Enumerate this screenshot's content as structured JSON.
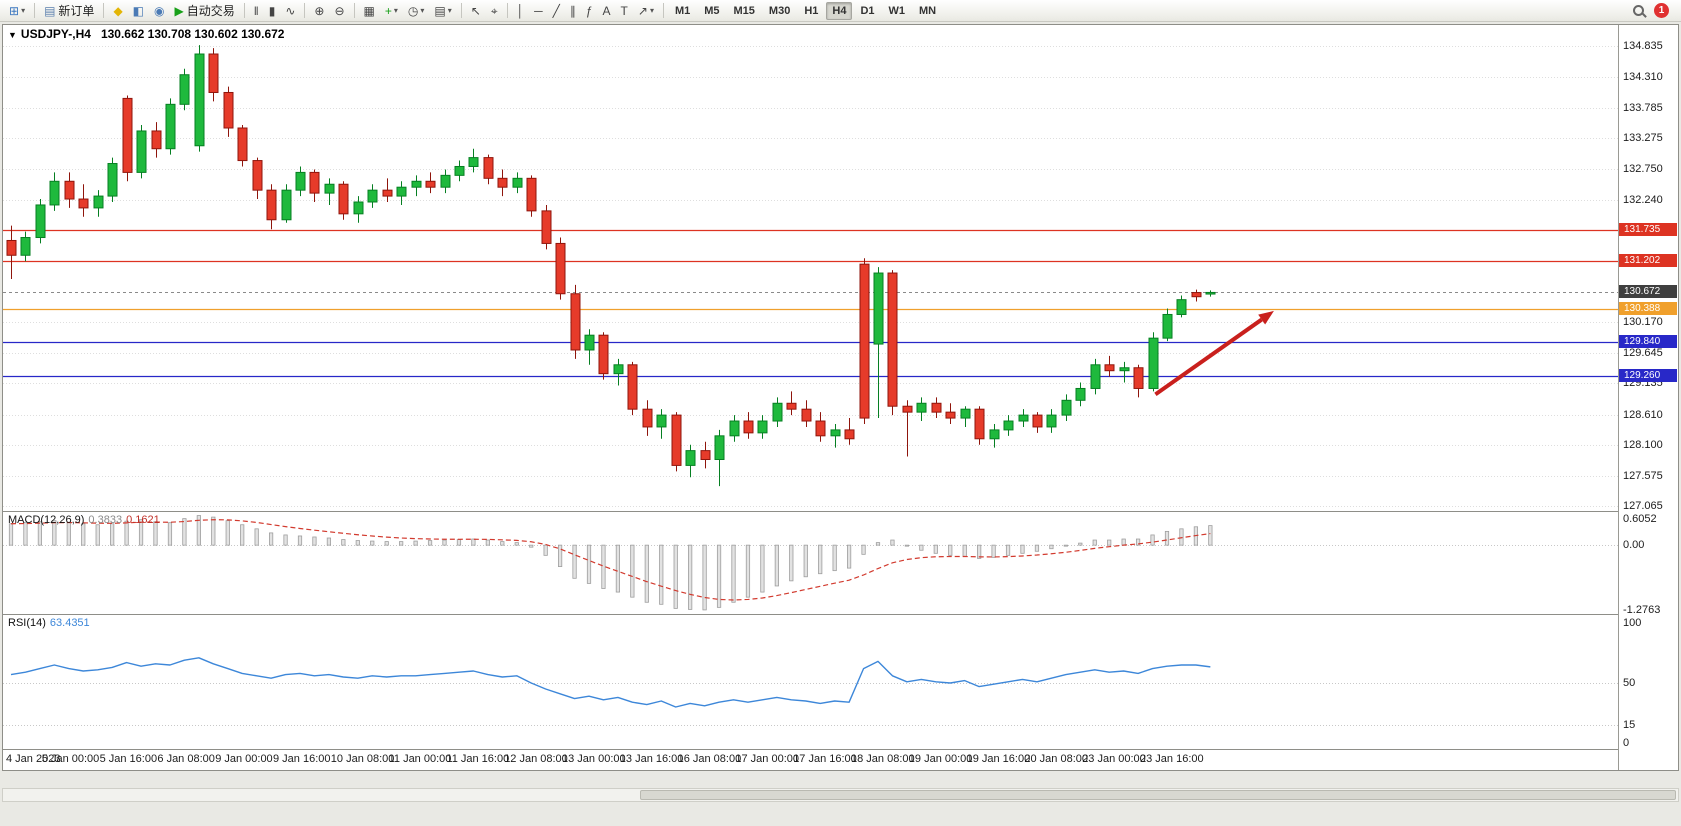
{
  "toolbar": {
    "caret_glyph": "▾",
    "left_items": [
      {
        "name": "new-chart-button",
        "glyph": "⊞",
        "color": "#3c78c0",
        "dropdown": true
      },
      {
        "sep": true
      },
      {
        "name": "new-order-button",
        "glyph": "▤",
        "color": "#5a7fae",
        "label": "新订单"
      },
      {
        "sep": true
      },
      {
        "name": "metaeditor-button",
        "glyph": "◆",
        "color": "#e3b505"
      },
      {
        "name": "market-watch-button",
        "glyph": "◧",
        "color": "#4a7ab5"
      },
      {
        "name": "navigator-button",
        "glyph": "◉",
        "color": "#4a7ab5"
      },
      {
        "name": "autotrading-button",
        "glyph": "▶",
        "color": "#18a018",
        "label": "自动交易"
      },
      {
        "sep": true
      },
      {
        "name": "chart-bars-button",
        "glyph": "‖",
        "color": "#444"
      },
      {
        "name": "chart-candles-button",
        "glyph": "▮",
        "color": "#444"
      },
      {
        "name": "chart-line-button",
        "glyph": "∿",
        "color": "#444"
      },
      {
        "sep": true
      },
      {
        "name": "zoom-in-button",
        "glyph": "⊕",
        "color": "#444"
      },
      {
        "name": "zoom-out-button",
        "glyph": "⊖",
        "color": "#444"
      },
      {
        "sep": true
      },
      {
        "name": "tile-windows-button",
        "glyph": "▦",
        "color": "#444"
      },
      {
        "name": "indicators-button",
        "glyph": "+",
        "color": "#18a018",
        "dropdown": true
      },
      {
        "name": "periods-button",
        "glyph": "◷",
        "color": "#444",
        "dropdown": true
      },
      {
        "name": "templates-button",
        "glyph": "▤",
        "color": "#444",
        "dropdown": true
      },
      {
        "sep": true
      },
      {
        "name": "cursor-button",
        "glyph": "↖",
        "color": "#444"
      },
      {
        "name": "crosshair-button",
        "glyph": "⌖",
        "color": "#444"
      },
      {
        "sep": true
      },
      {
        "name": "vertical-line-button",
        "glyph": "│",
        "color": "#444"
      },
      {
        "name": "horizontal-line-button",
        "glyph": "─",
        "color": "#444"
      },
      {
        "name": "trendline-button",
        "glyph": "╱",
        "color": "#444"
      },
      {
        "name": "equidistant-channel-button",
        "glyph": "∥",
        "color": "#444"
      },
      {
        "name": "fibonacci-button",
        "glyph": "ƒ",
        "color": "#444"
      },
      {
        "name": "text-button",
        "glyph": "A",
        "color": "#444"
      },
      {
        "name": "text-label-button",
        "glyph": "T",
        "color": "#444"
      },
      {
        "name": "arrows-button",
        "glyph": "↗",
        "color": "#444",
        "dropdown": true
      },
      {
        "sep": true
      }
    ],
    "timeframes": {
      "options": [
        "M1",
        "M5",
        "M15",
        "M30",
        "H1",
        "H4",
        "D1",
        "W1",
        "MN"
      ],
      "active": "H4"
    },
    "right_items": [
      {
        "name": "symbol-search-button",
        "icon": "magnifier"
      },
      {
        "name": "notifications-badge",
        "label": "1",
        "bg": "#e03131"
      }
    ]
  },
  "chart": {
    "one_click_glyph": "▼",
    "title": {
      "symbol_period": "USDJPY-,H4",
      "ohlc": "130.662 130.708 130.602 130.672"
    },
    "indicators": {
      "macd_label": "MACD(12,26,9)",
      "macd_value": "0.3833",
      "macd_signal": "0.1621",
      "rsi_label": "RSI(14)",
      "rsi_value": "63.4351"
    }
  },
  "chart_data": {
    "type": "candlestick",
    "symbol": "USDJPY",
    "timeframe": "H4",
    "bars_per_label": 4,
    "price_axis": {
      "view_max": 135.19,
      "view_min": 126.98,
      "ticks": [
        "134.835",
        "134.310",
        "133.785",
        "133.275",
        "132.750",
        "132.240",
        "130.170",
        "129.645",
        "129.135",
        "128.610",
        "128.100",
        "127.575",
        "127.065"
      ]
    },
    "current": {
      "price": 130.672,
      "label": "130.672",
      "badge_color": "#3f3f3f"
    },
    "levels": [
      {
        "price": 131.735,
        "label": "131.735",
        "color": "#dd3322"
      },
      {
        "price": 131.202,
        "label": "131.202",
        "color": "#dd3322"
      },
      {
        "price": 130.388,
        "label": "130.388",
        "color": "#f0a02c"
      },
      {
        "price": 129.84,
        "label": "129.840",
        "color": "#2828c8"
      },
      {
        "price": 129.26,
        "label": "129.260",
        "color": "#2828c8"
      }
    ],
    "x_labels": [
      "4 Jan 2023",
      "5 Jan 00:00",
      "5 Jan 16:00",
      "6 Jan 08:00",
      "9 Jan 00:00",
      "9 Jan 16:00",
      "10 Jan 08:00",
      "11 Jan 00:00",
      "11 Jan 16:00",
      "12 Jan 08:00",
      "13 Jan 00:00",
      "13 Jan 16:00",
      "16 Jan 08:00",
      "17 Jan 00:00",
      "17 Jan 16:00",
      "18 Jan 08:00",
      "19 Jan 00:00",
      "19 Jan 16:00",
      "20 Jan 08:00",
      "23 Jan 00:00",
      "23 Jan 16:00"
    ],
    "candles": [
      [
        131.55,
        131.8,
        130.9,
        131.3
      ],
      [
        131.3,
        131.7,
        131.2,
        131.6
      ],
      [
        131.6,
        132.25,
        131.5,
        132.15
      ],
      [
        132.15,
        132.7,
        132.05,
        132.55
      ],
      [
        132.55,
        132.7,
        132.1,
        132.25
      ],
      [
        132.25,
        132.5,
        131.95,
        132.1
      ],
      [
        132.1,
        132.4,
        131.95,
        132.3
      ],
      [
        132.3,
        132.95,
        132.2,
        132.85
      ],
      [
        133.95,
        134.0,
        132.55,
        132.7
      ],
      [
        132.7,
        133.5,
        132.6,
        133.4
      ],
      [
        133.4,
        133.55,
        132.95,
        133.1
      ],
      [
        133.1,
        133.95,
        133.0,
        133.85
      ],
      [
        133.85,
        134.45,
        133.75,
        134.35
      ],
      [
        133.15,
        134.85,
        133.05,
        134.7
      ],
      [
        134.7,
        134.8,
        133.9,
        134.05
      ],
      [
        134.05,
        134.15,
        133.3,
        133.45
      ],
      [
        133.45,
        133.5,
        132.8,
        132.9
      ],
      [
        132.9,
        132.95,
        132.25,
        132.4
      ],
      [
        132.4,
        132.5,
        131.74,
        131.9
      ],
      [
        131.9,
        132.5,
        131.85,
        132.4
      ],
      [
        132.4,
        132.8,
        132.3,
        132.7
      ],
      [
        132.7,
        132.75,
        132.2,
        132.35
      ],
      [
        132.35,
        132.6,
        132.15,
        132.5
      ],
      [
        132.5,
        132.55,
        131.9,
        132.0
      ],
      [
        132.0,
        132.3,
        131.85,
        132.2
      ],
      [
        132.2,
        132.5,
        132.1,
        132.4
      ],
      [
        132.4,
        132.6,
        132.2,
        132.3
      ],
      [
        132.3,
        132.55,
        132.15,
        132.45
      ],
      [
        132.45,
        132.65,
        132.3,
        132.55
      ],
      [
        132.55,
        132.7,
        132.35,
        132.45
      ],
      [
        132.45,
        132.75,
        132.35,
        132.65
      ],
      [
        132.65,
        132.9,
        132.55,
        132.8
      ],
      [
        132.8,
        133.1,
        132.7,
        132.95
      ],
      [
        132.95,
        133.0,
        132.5,
        132.6
      ],
      [
        132.6,
        132.75,
        132.3,
        132.45
      ],
      [
        132.45,
        132.7,
        132.35,
        132.6
      ],
      [
        132.6,
        132.65,
        131.95,
        132.05
      ],
      [
        132.05,
        132.15,
        131.4,
        131.5
      ],
      [
        131.5,
        131.6,
        130.55,
        130.65
      ],
      [
        130.65,
        130.8,
        129.55,
        129.7
      ],
      [
        129.7,
        130.05,
        129.45,
        129.95
      ],
      [
        129.95,
        130.0,
        129.2,
        129.3
      ],
      [
        129.3,
        129.55,
        129.1,
        129.45
      ],
      [
        129.45,
        129.5,
        128.6,
        128.7
      ],
      [
        128.7,
        128.85,
        128.25,
        128.4
      ],
      [
        128.4,
        128.7,
        128.2,
        128.6
      ],
      [
        128.6,
        128.65,
        127.65,
        127.75
      ],
      [
        127.75,
        128.1,
        127.55,
        128.0
      ],
      [
        128.0,
        128.15,
        127.7,
        127.85
      ],
      [
        127.85,
        128.35,
        127.4,
        128.25
      ],
      [
        128.25,
        128.6,
        128.15,
        128.5
      ],
      [
        128.5,
        128.65,
        128.2,
        128.3
      ],
      [
        128.3,
        128.6,
        128.2,
        128.5
      ],
      [
        128.5,
        128.9,
        128.4,
        128.8
      ],
      [
        128.8,
        129.0,
        128.6,
        128.7
      ],
      [
        128.7,
        128.85,
        128.4,
        128.5
      ],
      [
        128.5,
        128.65,
        128.15,
        128.25
      ],
      [
        128.25,
        128.45,
        128.05,
        128.35
      ],
      [
        128.35,
        128.55,
        128.1,
        128.2
      ],
      [
        131.15,
        131.25,
        128.45,
        128.55
      ],
      [
        129.8,
        131.1,
        128.55,
        131.0
      ],
      [
        131.0,
        131.05,
        128.6,
        128.75
      ],
      [
        128.75,
        128.85,
        127.9,
        128.65
      ],
      [
        128.65,
        128.9,
        128.5,
        128.8
      ],
      [
        128.8,
        128.9,
        128.55,
        128.65
      ],
      [
        128.65,
        128.8,
        128.45,
        128.55
      ],
      [
        128.55,
        128.75,
        128.4,
        128.7
      ],
      [
        128.7,
        128.75,
        128.1,
        128.2
      ],
      [
        128.2,
        128.45,
        128.05,
        128.35
      ],
      [
        128.35,
        128.6,
        128.25,
        128.5
      ],
      [
        128.5,
        128.7,
        128.4,
        128.6
      ],
      [
        128.6,
        128.65,
        128.3,
        128.4
      ],
      [
        128.4,
        128.7,
        128.3,
        128.6
      ],
      [
        128.6,
        128.95,
        128.5,
        128.85
      ],
      [
        128.85,
        129.15,
        128.75,
        129.05
      ],
      [
        129.05,
        129.55,
        128.95,
        129.45
      ],
      [
        129.45,
        129.6,
        129.25,
        129.35
      ],
      [
        129.35,
        129.5,
        129.15,
        129.4
      ],
      [
        129.4,
        129.45,
        128.9,
        129.05
      ],
      [
        129.05,
        130.0,
        129.0,
        129.9
      ],
      [
        129.9,
        130.4,
        129.85,
        130.3
      ],
      [
        130.3,
        130.62,
        130.25,
        130.55
      ],
      [
        130.67,
        130.72,
        130.52,
        130.6
      ],
      [
        130.662,
        130.708,
        130.602,
        130.672
      ]
    ],
    "macd": {
      "range": [
        -1.35,
        0.65
      ],
      "ticks": [
        {
          "v": 0.6052,
          "label": "0.6052"
        },
        {
          "v": 0.0,
          "label": "0.00"
        },
        {
          "v": -1.2763,
          "label": "-1.2763"
        }
      ],
      "histogram": [
        0.42,
        0.44,
        0.46,
        0.48,
        0.45,
        0.42,
        0.4,
        0.42,
        0.47,
        0.5,
        0.46,
        0.44,
        0.52,
        0.58,
        0.55,
        0.48,
        0.4,
        0.32,
        0.24,
        0.2,
        0.18,
        0.16,
        0.14,
        0.11,
        0.09,
        0.08,
        0.07,
        0.07,
        0.08,
        0.09,
        0.1,
        0.11,
        0.12,
        0.1,
        0.07,
        0.05,
        -0.04,
        -0.2,
        -0.42,
        -0.65,
        -0.75,
        -0.85,
        -0.92,
        -1.02,
        -1.12,
        -1.16,
        -1.24,
        -1.26,
        -1.27,
        -1.22,
        -1.12,
        -1.02,
        -0.92,
        -0.8,
        -0.7,
        -0.62,
        -0.56,
        -0.5,
        -0.45,
        -0.18,
        0.05,
        0.1,
        -0.02,
        -0.1,
        -0.16,
        -0.2,
        -0.22,
        -0.26,
        -0.24,
        -0.2,
        -0.16,
        -0.12,
        -0.07,
        -0.02,
        0.04,
        0.1,
        0.1,
        0.12,
        0.12,
        0.2,
        0.27,
        0.32,
        0.36,
        0.3833
      ]
    },
    "rsi": {
      "range": [
        0,
        100
      ],
      "levels": [
        50,
        15
      ],
      "ticks": [
        {
          "v": 100,
          "label": "100"
        },
        {
          "v": 50,
          "label": "50"
        },
        {
          "v": 15,
          "label": "15"
        },
        {
          "v": 0,
          "label": "0"
        }
      ],
      "values": [
        57,
        59,
        62,
        65,
        62,
        60,
        61,
        63,
        67,
        64,
        66,
        65,
        69,
        71,
        66,
        62,
        58,
        56,
        54,
        57,
        58,
        56,
        57,
        55,
        54,
        56,
        55,
        56,
        56,
        57,
        58,
        59,
        60,
        57,
        55,
        56,
        50,
        45,
        41,
        37,
        39,
        36,
        38,
        34,
        32,
        35,
        30,
        33,
        31,
        34,
        36,
        34,
        36,
        38,
        36,
        35,
        33,
        35,
        34,
        62,
        68,
        56,
        51,
        53,
        51,
        50,
        52,
        47,
        49,
        51,
        53,
        51,
        54,
        57,
        59,
        61,
        59,
        60,
        58,
        62,
        64,
        65,
        65,
        63.4351
      ]
    },
    "annotation_arrow": {
      "from_bar": 79.2,
      "from_price": 128.95,
      "to_bar": 87.4,
      "to_price": 130.36,
      "color": "#c9201d",
      "width": 4
    }
  }
}
